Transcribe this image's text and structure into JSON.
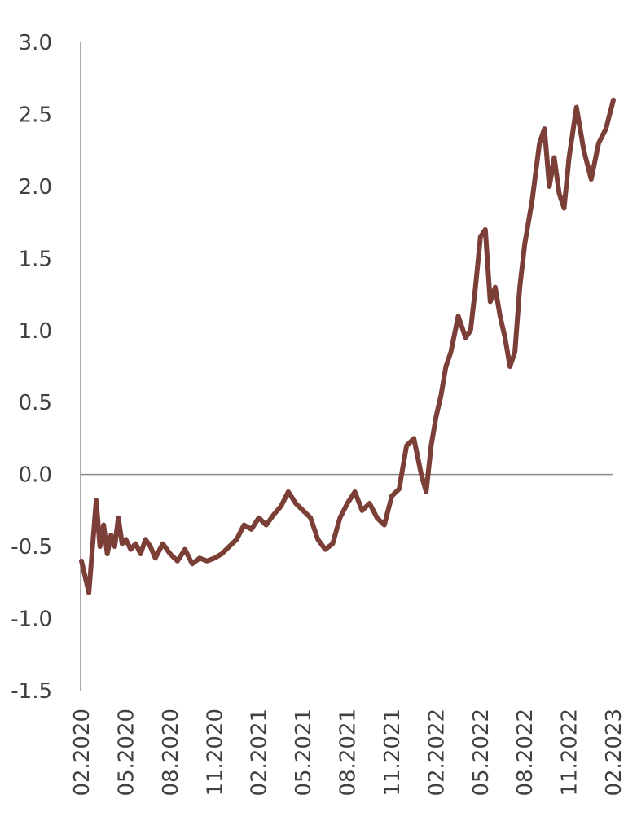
{
  "chart_data": {
    "type": "line",
    "title": "",
    "xlabel": "",
    "ylabel": "",
    "ylim": [
      -1.5,
      3.0
    ],
    "y_ticks": [
      "3.0",
      "2.5",
      "2.0",
      "1.5",
      "1.0",
      "0.5",
      "0.0",
      "-0.5",
      "-1.0",
      "-1.5"
    ],
    "x_ticks": [
      "02.2020",
      "05.2020",
      "08.2020",
      "11.2020",
      "02.2021",
      "05.2021",
      "08.2021",
      "11.2021",
      "02.2022",
      "05.2022",
      "08.2022",
      "11.2022",
      "02.2023"
    ],
    "grid": false,
    "legend": "none",
    "series": [
      {
        "color": "#7b3f38",
        "x": [
          "2020-02",
          "2020-02",
          "2020-03",
          "2020-03",
          "2020-03",
          "2020-03",
          "2020-04",
          "2020-04",
          "2020-04",
          "2020-04",
          "2020-05",
          "2020-05",
          "2020-05",
          "2020-06",
          "2020-06",
          "2020-06",
          "2020-07",
          "2020-07",
          "2020-08",
          "2020-08",
          "2020-09",
          "2020-09",
          "2020-10",
          "2020-10",
          "2020-11",
          "2020-11",
          "2020-12",
          "2020-12",
          "2021-01",
          "2021-01",
          "2021-02",
          "2021-02",
          "2021-03",
          "2021-03",
          "2021-04",
          "2021-04",
          "2021-05",
          "2021-05",
          "2021-06",
          "2021-06",
          "2021-07",
          "2021-07",
          "2021-08",
          "2021-08",
          "2021-09",
          "2021-09",
          "2021-10",
          "2021-10",
          "2021-11",
          "2021-11",
          "2021-12",
          "2021-12",
          "2022-01",
          "2022-01",
          "2022-01",
          "2022-02",
          "2022-02",
          "2022-02",
          "2022-03",
          "2022-03",
          "2022-04",
          "2022-04",
          "2022-04",
          "2022-05",
          "2022-05",
          "2022-05",
          "2022-06",
          "2022-06",
          "2022-06",
          "2022-07",
          "2022-07",
          "2022-07",
          "2022-08",
          "2022-08",
          "2022-09",
          "2022-09",
          "2022-09",
          "2022-10",
          "2022-10",
          "2022-10",
          "2022-11",
          "2022-11",
          "2022-12",
          "2022-12",
          "2023-01",
          "2023-01",
          "2023-02"
        ],
        "values": [
          -0.6,
          -0.82,
          -0.18,
          -0.5,
          -0.35,
          -0.55,
          -0.42,
          -0.5,
          -0.3,
          -0.48,
          -0.45,
          -0.52,
          -0.48,
          -0.55,
          -0.45,
          -0.5,
          -0.58,
          -0.48,
          -0.55,
          -0.6,
          -0.52,
          -0.62,
          -0.58,
          -0.6,
          -0.58,
          -0.55,
          -0.5,
          -0.45,
          -0.35,
          -0.38,
          -0.3,
          -0.35,
          -0.28,
          -0.22,
          -0.12,
          -0.2,
          -0.25,
          -0.3,
          -0.45,
          -0.52,
          -0.48,
          -0.3,
          -0.2,
          -0.12,
          -0.25,
          -0.2,
          -0.3,
          -0.35,
          -0.15,
          -0.1,
          0.2,
          0.25,
          0.0,
          -0.12,
          0.2,
          0.4,
          0.55,
          0.75,
          0.85,
          1.1,
          0.95,
          1.0,
          1.3,
          1.65,
          1.7,
          1.2,
          1.3,
          1.1,
          0.95,
          0.75,
          0.85,
          1.3,
          1.6,
          1.9,
          2.3,
          2.4,
          2.0,
          2.2,
          1.95,
          1.85,
          2.2,
          2.55,
          2.25,
          2.05,
          2.3,
          2.4,
          2.6
        ]
      }
    ]
  }
}
